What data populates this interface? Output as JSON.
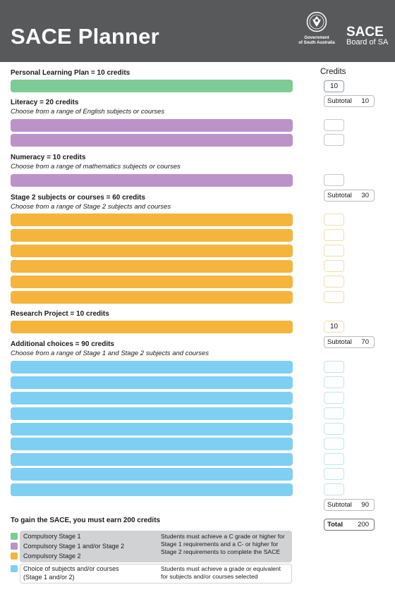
{
  "header": {
    "title": "SACE Planner",
    "gov_line1": "Government",
    "gov_line2": "of South Australia",
    "logo": "SACE",
    "logo_sub": "Board of SA",
    "colors": {
      "background": "#58595b",
      "text": "#ffffff"
    }
  },
  "credits_heading": "Credits",
  "sections": {
    "plp": {
      "title": "Personal Learning Plan = 10 credits",
      "credit": "10"
    },
    "literacy": {
      "title": "Literacy = 20 credits",
      "subtitle": "Choose from a range of English subjects or courses"
    },
    "numeracy": {
      "title": "Numeracy = 10 credits",
      "subtitle": "Choose from a range of mathematics subjects or courses"
    },
    "stage2": {
      "title": "Stage 2 subjects or courses = 60 credits",
      "subtitle": "Choose from a range of Stage 2 subjects and courses"
    },
    "research": {
      "title": "Research Project = 10 credits",
      "credit": "10"
    },
    "additional": {
      "title": "Additional choices = 90 credits",
      "subtitle": "Choose from a range of Stage 1 and Stage 2 subjects and courses"
    }
  },
  "subtotals": {
    "s1": {
      "label": "Subtotal",
      "value": "10"
    },
    "s2": {
      "label": "Subtotal",
      "value": "30"
    },
    "s3": {
      "label": "Subtotal",
      "value": "70"
    },
    "s4": {
      "label": "Subtotal",
      "value": "90"
    },
    "total": {
      "label": "Total",
      "value": "200"
    }
  },
  "footer": {
    "gain_text": "To gain the SACE, you must earn 200 credits",
    "legend": [
      {
        "label": "Compulsory Stage 1",
        "color": "#7dcb95"
      },
      {
        "label": "Compulsory Stage 1 and/or Stage 2",
        "color": "#bb93c8"
      },
      {
        "label": "Compulsory Stage 2",
        "color": "#f5b43b"
      },
      {
        "label": "Choice of subjects and/or courses",
        "label2": "(Stage 1 and/or 2)",
        "color": "#7fcff3"
      }
    ],
    "note_compulsory": {
      "line1": "Students must achieve a C grade or higher for",
      "line2": "Stage 1 requirements and a C- or higher for",
      "line3": "Stage 2 requirements to complete the SACE"
    },
    "note_choice": {
      "line1": "Students must achieve a grade or equivalent",
      "line2": "for subjects and/or courses selected"
    }
  },
  "colors": {
    "compulsory_stage1": "#7dcb95",
    "compulsory_stage1_or_2": "#bb93c8",
    "compulsory_stage2": "#f5b43b",
    "choice": "#7fcff3"
  }
}
